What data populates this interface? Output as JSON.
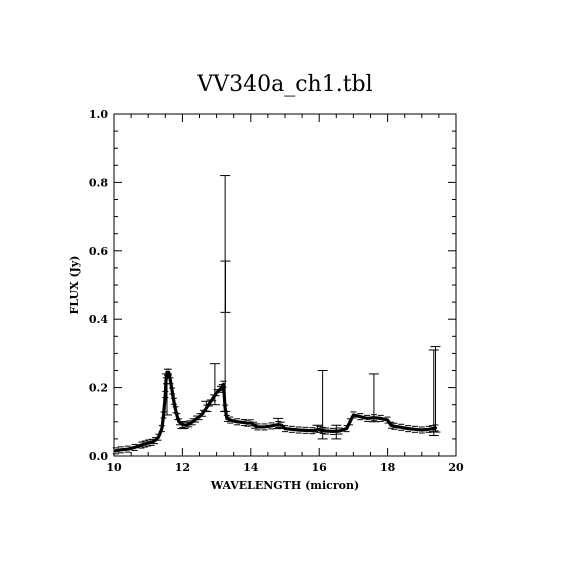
{
  "chart_data": {
    "type": "line",
    "title": "VV340a_ch1.tbl",
    "xlabel": "WAVELENGTH (micron)",
    "ylabel": "FLUX (Jy)",
    "xlim": [
      10,
      20
    ],
    "ylim": [
      0.0,
      1.0
    ],
    "xticks": [
      10,
      12,
      14,
      16,
      18,
      20
    ],
    "xtick_labels": [
      "10",
      "12",
      "14",
      "16",
      "18",
      "20"
    ],
    "yticks": [
      0.0,
      0.2,
      0.4,
      0.6,
      0.8,
      1.0
    ],
    "ytick_labels": [
      "0.0",
      "0.2",
      "0.4",
      "0.6",
      "0.8",
      "1.0"
    ],
    "grid": false,
    "legend": "none",
    "series": [
      {
        "x": [
          10.05,
          10.2,
          10.4,
          10.6,
          10.8,
          10.9,
          11.0,
          11.1,
          11.2,
          11.3,
          11.4,
          11.45,
          11.5,
          11.52,
          11.55,
          11.6,
          11.65,
          11.7,
          11.75,
          11.8,
          11.85,
          11.9,
          12.0,
          12.1,
          12.2,
          12.3,
          12.4,
          12.5,
          12.6,
          12.7,
          12.8,
          12.9,
          13.0,
          13.1,
          13.15,
          13.2,
          13.25,
          13.3,
          13.4,
          13.6,
          13.8,
          13.9,
          14.0,
          14.1,
          14.2,
          14.4,
          14.6,
          14.8,
          14.9,
          15.0,
          15.2,
          15.4,
          15.6,
          15.8,
          16.0,
          16.1,
          16.2,
          16.4,
          16.6,
          16.8,
          16.9,
          17.0,
          17.2,
          17.4,
          17.6,
          17.8,
          18.0,
          18.1,
          18.2,
          18.4,
          18.6,
          18.8,
          19.0,
          19.2,
          19.3,
          19.4
        ],
        "y": [
          0.015,
          0.018,
          0.02,
          0.025,
          0.032,
          0.035,
          0.038,
          0.04,
          0.045,
          0.055,
          0.08,
          0.12,
          0.18,
          0.22,
          0.245,
          0.245,
          0.22,
          0.19,
          0.16,
          0.135,
          0.115,
          0.1,
          0.092,
          0.09,
          0.094,
          0.1,
          0.108,
          0.115,
          0.125,
          0.14,
          0.155,
          0.17,
          0.185,
          0.195,
          0.2,
          0.21,
          0.14,
          0.11,
          0.105,
          0.1,
          0.098,
          0.096,
          0.097,
          0.09,
          0.085,
          0.085,
          0.088,
          0.092,
          0.09,
          0.08,
          0.078,
          0.076,
          0.075,
          0.074,
          0.078,
          0.075,
          0.073,
          0.072,
          0.073,
          0.08,
          0.1,
          0.12,
          0.115,
          0.11,
          0.112,
          0.11,
          0.105,
          0.09,
          0.087,
          0.084,
          0.08,
          0.078,
          0.076,
          0.078,
          0.08,
          0.082
        ],
        "error_bars": [
          {
            "x": 11.55,
            "low": 0.12,
            "high": 0.24
          },
          {
            "x": 12.0,
            "low": 0.08,
            "high": 0.1
          },
          {
            "x": 12.7,
            "low": 0.13,
            "high": 0.16
          },
          {
            "x": 12.95,
            "low": 0.15,
            "high": 0.27
          },
          {
            "x": 13.25,
            "low": 0.13,
            "high": 0.82
          },
          {
            "x": 13.26,
            "low": 0.42,
            "high": 0.57
          },
          {
            "x": 14.8,
            "low": 0.08,
            "high": 0.11
          },
          {
            "x": 15.95,
            "low": 0.07,
            "high": 0.09
          },
          {
            "x": 16.1,
            "low": 0.05,
            "high": 0.25
          },
          {
            "x": 16.5,
            "low": 0.05,
            "high": 0.09
          },
          {
            "x": 17.6,
            "low": 0.1,
            "high": 0.24
          },
          {
            "x": 19.35,
            "low": 0.06,
            "high": 0.31
          },
          {
            "x": 19.4,
            "low": 0.07,
            "high": 0.32
          }
        ]
      }
    ]
  }
}
